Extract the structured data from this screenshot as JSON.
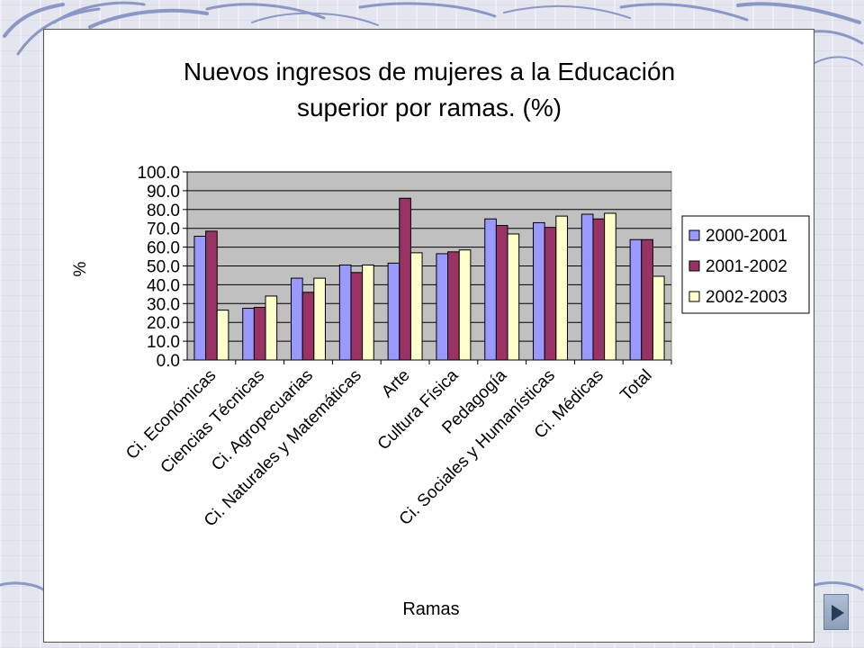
{
  "chart_data": {
    "type": "bar",
    "title": [
      "Nuevos ingresos de mujeres a la Educación",
      "superior por ramas. (%)"
    ],
    "xlabel": "Ramas",
    "ylabel": "%",
    "ylim": [
      0,
      100
    ],
    "ytick_labels": [
      "0.0",
      "10.0",
      "20.0",
      "30.0",
      "40.0",
      "50.0",
      "60.0",
      "70.0",
      "80.0",
      "90.0",
      "100.0"
    ],
    "categories": [
      "Ci. Económicas",
      "Ciencias Técnicas",
      "Ci. Agropecuarias",
      "Ci. Naturales y Matemáticas",
      "Arte",
      "Cultura Física",
      "Pedagogía",
      "Ci. Sociales y Humanísticas",
      "Ci. Médicas",
      "Total"
    ],
    "series": [
      {
        "name": "2000-2001",
        "color": "#9999ff",
        "values": [
          65.8,
          27.5,
          43.5,
          50.5,
          51.5,
          56.5,
          75.0,
          73.0,
          77.5,
          64.0
        ]
      },
      {
        "name": "2001-2002",
        "color": "#993366",
        "values": [
          68.5,
          28.0,
          36.0,
          46.5,
          86.0,
          57.5,
          71.5,
          70.5,
          75.0,
          64.0
        ]
      },
      {
        "name": "2002-2003",
        "color": "#ffffcc",
        "values": [
          26.5,
          34.0,
          43.5,
          50.5,
          57.0,
          58.5,
          67.0,
          76.5,
          78.0,
          44.5
        ]
      }
    ],
    "grid": true,
    "legend_position": "right",
    "plot_background": "#c0c0c0"
  },
  "nav": {
    "next_icon": "play-triangle-icon"
  }
}
